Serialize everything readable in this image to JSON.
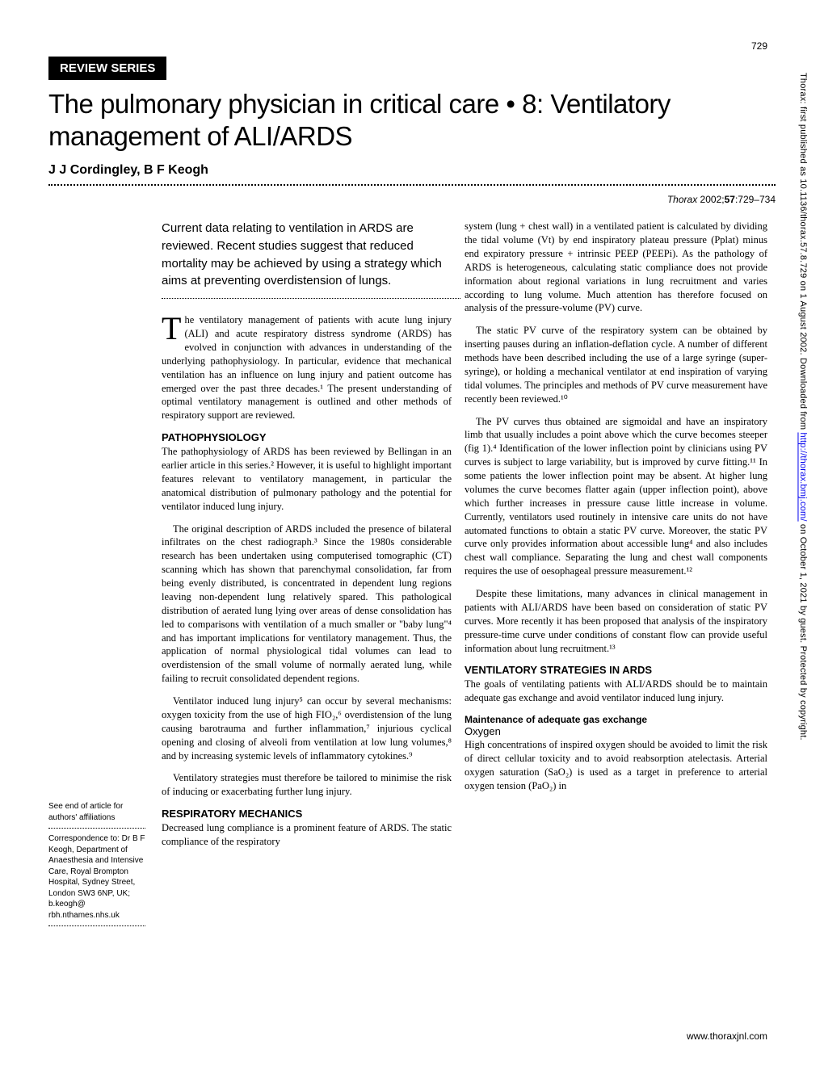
{
  "page_number": "729",
  "series_label": "REVIEW SERIES",
  "title": "The pulmonary physician in critical care • 8: Ventilatory management of ALI/ARDS",
  "authors": "J J Cordingley, B F Keogh",
  "citation_journal": "Thorax",
  "citation_year": "2002;",
  "citation_volume": "57",
  "citation_pages": ":729–734",
  "summary": "Current data relating to ventilation in ARDS are reviewed. Recent studies suggest that reduced mortality may be achieved by using a strategy which aims at preventing overdistension of lungs.",
  "intro_para": "he ventilatory management of patients with acute lung injury (ALI) and acute respiratory distress syndrome (ARDS) has evolved in conjunction with advances in understanding of the underlying pathophysiology. In particular, evidence that mechanical ventilation has an influence on lung injury and patient outcome has emerged over the past three decades.¹ The present understanding of optimal ventilatory management is outlined and other methods of respiratory support are reviewed.",
  "heading_pathophysiology": "PATHOPHYSIOLOGY",
  "patho_p1": "The pathophysiology of ARDS has been reviewed by Bellingan in an earlier article in this series.² However, it is useful to highlight important features relevant to ventilatory management, in particular the anatomical distribution of pulmonary pathology and the potential for ventilator induced lung injury.",
  "patho_p2": "The original description of ARDS included the presence of bilateral infiltrates on the chest radiograph.³ Since the 1980s considerable research has been undertaken using computerised tomographic (CT) scanning which has shown that parenchymal consolidation, far from being evenly distributed, is concentrated in dependent lung regions leaving non-dependent lung relatively spared. This pathological distribution of aerated lung lying over areas of dense consolidation has led to comparisons with ventilation of a much smaller or \"baby lung\"⁴ and has important implications for ventilatory management. Thus, the application of normal physiological tidal volumes can lead to overdistension of the small volume of normally aerated lung, while failing to recruit consolidated dependent regions.",
  "patho_p3": "Ventilator induced lung injury⁵ can occur by several mechanisms: oxygen toxicity from the use of high FIO₂,⁶ overdistension of the lung causing barotrauma and further inflammation,⁷ injurious cyclical opening and closing of alveoli from ventilation at low lung volumes,⁸ and by increasing systemic levels of inflammatory cytokines.⁹",
  "patho_p4": "Ventilatory strategies must therefore be tailored to minimise the risk of inducing or exacerbating further lung injury.",
  "heading_respmech": "RESPIRATORY MECHANICS",
  "respmech_p1": "Decreased lung compliance is a prominent feature of ARDS. The static compliance of the respiratory",
  "right_p1": "system (lung + chest wall) in a ventilated patient is calculated by dividing the tidal volume (Vt) by end inspiratory plateau pressure (Pplat) minus end expiratory pressure + intrinsic PEEP (PEEPi). As the pathology of ARDS is heterogeneous, calculating static compliance does not provide information about regional variations in lung recruitment and varies according to lung volume. Much attention has therefore focused on analysis of the pressure-volume (PV) curve.",
  "right_p2": "The static PV curve of the respiratory system can be obtained by inserting pauses during an inflation-deflation cycle. A number of different methods have been described including the use of a large syringe (super-syringe), or holding a mechanical ventilator at end inspiration of varying tidal volumes. The principles and methods of PV curve measurement have recently been reviewed.¹⁰",
  "right_p3": "The PV curves thus obtained are sigmoidal and have an inspiratory limb that usually includes a point above which the curve becomes steeper (fig 1).⁴ Identification of the lower inflection point by clinicians using PV curves is subject to large variability, but is improved by curve fitting.¹¹ In some patients the lower inflection point may be absent. At higher lung volumes the curve becomes flatter again (upper inflection point), above which further increases in pressure cause little increase in volume. Currently, ventilators used routinely in intensive care units do not have automated functions to obtain a static PV curve. Moreover, the static PV curve only provides information about accessible lung⁴ and also includes chest wall compliance. Separating the lung and chest wall components requires the use of oesophageal pressure measurement.¹²",
  "right_p4": "Despite these limitations, many advances in clinical management in patients with ALI/ARDS have been based on consideration of static PV curves. More recently it has been proposed that analysis of the inspiratory pressure-time curve under conditions of constant flow can provide useful information about lung recruitment.¹³",
  "heading_ventstrat": "VENTILATORY STRATEGIES IN ARDS",
  "ventstrat_p1": "The goals of ventilating patients with ALI/ARDS should be to maintain adequate gas exchange and avoid ventilator induced lung injury.",
  "subheading_maintenance": "Maintenance of adequate gas exchange",
  "subsubheading_oxygen": "Oxygen",
  "oxygen_p1": "High concentrations of inspired oxygen should be avoided to limit the risk of direct cellular toxicity and to avoid reabsorption atelectasis. Arterial oxygen saturation (SaO₂) is used as a target in preference to arterial oxygen tension (PaO₂) in",
  "affiliation_note": "See end of article for authors' affiliations",
  "correspondence": "Correspondence to: Dr B F Keogh, Department of Anaesthesia and Intensive Care, Royal Brompton Hospital, Sydney Street, London SW3 6NP, UK; b.keogh@ rbh.nthames.nhs.uk",
  "footer_url": "www.thoraxjnl.com",
  "side_text_prefix": "Thorax: first published as 10.1136/thorax.57.8.729 on 1 August 2002. Downloaded from ",
  "side_text_link": "http://thorax.bmj.com/",
  "side_text_suffix": " on October 1, 2021 by guest. Protected by copyright."
}
